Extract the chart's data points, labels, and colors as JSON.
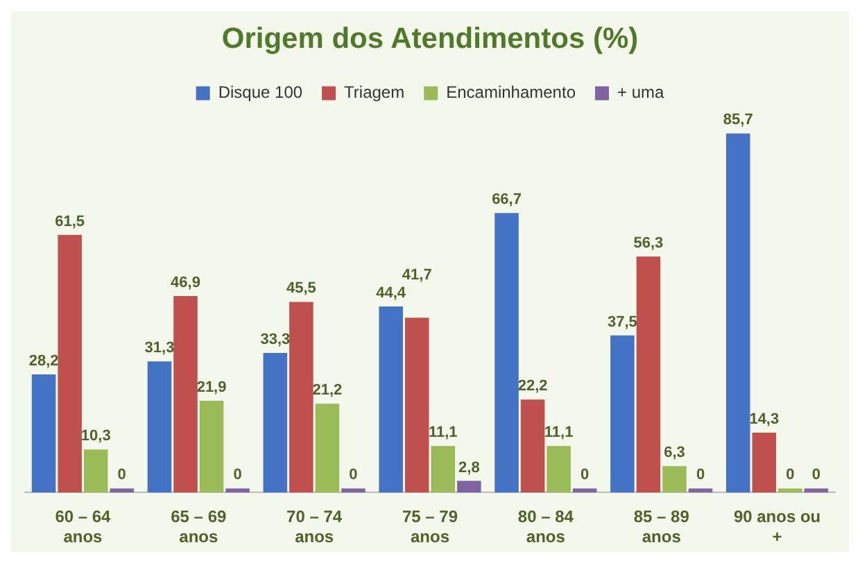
{
  "chart_data": {
    "type": "bar",
    "title": "Origem dos Atendimentos (%)",
    "categories": [
      "60 – 64 anos",
      "65 – 69 anos",
      "70 – 74 anos",
      "75 – 79 anos",
      "80 – 84 anos",
      "85 – 89 anos",
      "90 anos ou +"
    ],
    "series": [
      {
        "name": "Disque 100",
        "color": "#4472c4",
        "values": [
          28.2,
          31.3,
          33.3,
          44.4,
          66.7,
          37.5,
          85.7
        ],
        "value_labels": [
          "28,2",
          "31,3",
          "33,3",
          "44,4",
          "66,7",
          "37,5",
          "85,7"
        ]
      },
      {
        "name": "Triagem",
        "color": "#c0504d",
        "values": [
          61.5,
          46.9,
          45.5,
          41.7,
          22.2,
          56.3,
          14.3
        ],
        "value_labels": [
          "61,5",
          "46,9",
          "45,5",
          "41,7",
          "22,2",
          "56,3",
          "14,3"
        ]
      },
      {
        "name": "Encaminhamento",
        "color": "#9bbb59",
        "values": [
          10.3,
          21.9,
          21.2,
          11.1,
          11.1,
          6.3,
          0
        ],
        "value_labels": [
          "10,3",
          "21,9",
          "21,2",
          "11,1",
          "11,1",
          "6,3",
          "0"
        ]
      },
      {
        "name": "+ uma",
        "color": "#8064a2",
        "values": [
          0,
          0,
          0,
          2.8,
          0,
          0,
          0
        ],
        "value_labels": [
          "0",
          "0",
          "0",
          "2,8",
          "0",
          "0",
          "0"
        ]
      }
    ],
    "legend": "top",
    "grid": false,
    "tick_labels": "x"
  }
}
